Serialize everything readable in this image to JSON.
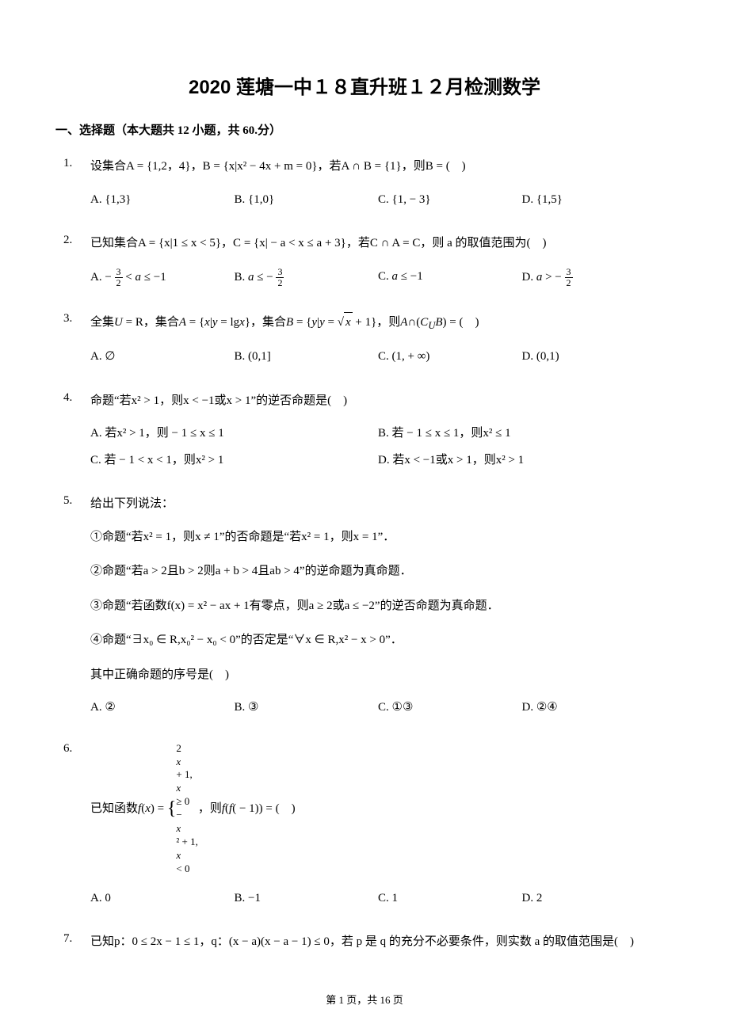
{
  "colors": {
    "text": "#000000",
    "background": "#ffffff"
  },
  "title": "2020 莲塘一中１８直升班１２月检测数学",
  "section_header": "一、选择题（本大题共 12 小题，共 60.分）",
  "footer": "第 1 页，共 16 页",
  "questions": [
    {
      "num": "1.",
      "stem": "设集合A = {1,2，4}，B = {x|x² − 4x + m = 0}，若A ∩ B = {1}，则B = (　)",
      "options": [
        {
          "label": "A.",
          "text": "{1,3}"
        },
        {
          "label": "B.",
          "text": "{1,0}"
        },
        {
          "label": "C.",
          "text": "{1, − 3}"
        },
        {
          "label": "D.",
          "text": "{1,5}"
        }
      ],
      "layout": "4col"
    },
    {
      "num": "2.",
      "stem": "已知集合A = {x|1 ≤ x < 5}，C = {x| − a < x ≤ a + 3}，若C ∩ A = C，则 a 的取值范围为(　)",
      "options": [
        {
          "label": "A.",
          "html": "− <span class=\"frac\"><span class=\"num\">3</span><span class=\"den\">2</span></span> < <span class=\"math-italic\">a</span> ≤ −1"
        },
        {
          "label": "B.",
          "html": "<span class=\"math-italic\">a</span> ≤ − <span class=\"frac\"><span class=\"num\">3</span><span class=\"den\">2</span></span>"
        },
        {
          "label": "C.",
          "html": "<span class=\"math-italic\">a</span> ≤ −1"
        },
        {
          "label": "D.",
          "html": "<span class=\"math-italic\">a</span> > − <span class=\"frac\"><span class=\"num\">3</span><span class=\"den\">2</span></span>"
        }
      ],
      "layout": "4col"
    },
    {
      "num": "3.",
      "stem_html": "全集<span class=\"math-italic\">U</span> = R，集合<span class=\"math-italic\">A</span> = {<span class=\"math-italic\">x</span>|<span class=\"math-italic\">y</span> = lg<span class=\"math-italic\">x</span>}，集合<span class=\"math-italic\">B</span> = {<span class=\"math-italic\">y</span>|<span class=\"math-italic\">y</span> = √<span class=\"sqrt\"><span class=\"math-italic\">x</span></span> + 1}，则<span class=\"math-italic\">A</span>∩(<span class=\"math-italic\">C<sub>U</sub>B</span>) = (　)",
      "options": [
        {
          "label": "A.",
          "text": "∅"
        },
        {
          "label": "B.",
          "text": "(0,1]"
        },
        {
          "label": "C.",
          "text": "(1, + ∞)"
        },
        {
          "label": "D.",
          "text": "(0,1)"
        }
      ],
      "layout": "4col"
    },
    {
      "num": "4.",
      "stem": "命题“若x² > 1，则x < −1或x > 1”的逆否命题是(　)",
      "options": [
        {
          "label": "A.",
          "text": "若x² > 1，则 − 1 ≤ x ≤ 1"
        },
        {
          "label": "B.",
          "text": "若 − 1 ≤ x ≤ 1，则x² ≤ 1"
        },
        {
          "label": "C.",
          "text": "若 − 1 < x < 1，则x² > 1"
        },
        {
          "label": "D.",
          "text": "若x < −1或x > 1，则x² > 1"
        }
      ],
      "layout": "2col"
    },
    {
      "num": "5.",
      "stem": "给出下列说法：",
      "substatements": [
        "①命题“若x² = 1，则x ≠ 1”的否命题是“若x² = 1，则x = 1”．",
        "②命题“若a > 2且b > 2则a + b > 4且ab > 4”的逆命题为真命题．",
        "③命题“若函数f(x) = x² − ax + 1有零点，则a ≥ 2或a ≤ −2”的逆否命题为真命题．",
        "④命题“∃x₀ ∈ R,x₀² − x₀ < 0”的否定是“∀x ∈ R,x² − x > 0”．"
      ],
      "tail": "其中正确命题的序号是(　)",
      "options": [
        {
          "label": "A.",
          "text": "②"
        },
        {
          "label": "B.",
          "text": "③"
        },
        {
          "label": "C.",
          "text": "①③"
        },
        {
          "label": "D.",
          "text": "②④"
        }
      ],
      "layout": "4col"
    },
    {
      "num": "6.",
      "stem_html": "已知函数<span class=\"math-italic\">f</span>(<span class=\"math-italic\">x</span>) = <span class=\"piecewise\"><span class=\"brace\">{</span><span class=\"piece-lines\"><span>2<span class=\"math-italic\">x</span> + 1,<span class=\"math-italic\">x</span> ≥ 0</span><span>−<span class=\"math-italic\">x</span>² + 1,<span class=\"math-italic\">x</span> < 0</span></span></span>，则<span class=\"math-italic\">f</span>(<span class=\"math-italic\">f</span>( − 1)) = (　)",
      "options": [
        {
          "label": "A.",
          "text": "0"
        },
        {
          "label": "B.",
          "text": "−1"
        },
        {
          "label": "C.",
          "text": "1"
        },
        {
          "label": "D.",
          "text": "2"
        }
      ],
      "layout": "4col"
    },
    {
      "num": "7.",
      "stem": "已知p：0 ≤ 2x − 1 ≤ 1，q：(x − a)(x − a − 1) ≤ 0，若 p 是 q 的充分不必要条件，则实数 a 的取值范围是(　)"
    }
  ]
}
